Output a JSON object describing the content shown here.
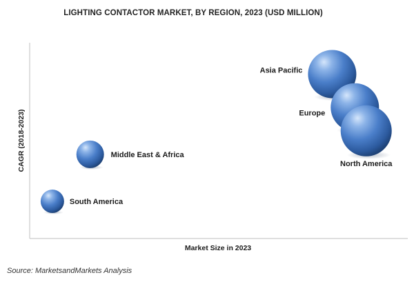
{
  "chart_data": {
    "type": "scatter",
    "title": "LIGHTING CONTACTOR MARKET, BY REGION, 2023 (USD MILLION)",
    "xlabel": "Market Size in 2023",
    "ylabel": "CAGR (2018-2023)",
    "grid": false,
    "legend": "none",
    "xlim": [
      0,
      100
    ],
    "ylim": [
      0,
      100
    ],
    "bubble_color": "#3f74c0",
    "series": [
      {
        "points": [
          {
            "label": "South America",
            "x": 6,
            "y": 19,
            "size": 34
          },
          {
            "label": "Middle East & Africa",
            "x": 16,
            "y": 43,
            "size": 40
          },
          {
            "label": "Asia Pacific",
            "x": 80,
            "y": 84,
            "size": 70
          },
          {
            "label": "Europe",
            "x": 86,
            "y": 67,
            "size": 70
          },
          {
            "label": "North America",
            "x": 89,
            "y": 55,
            "size": 74
          }
        ]
      }
    ]
  },
  "source": "Source: MarketsandMarkets Analysis"
}
